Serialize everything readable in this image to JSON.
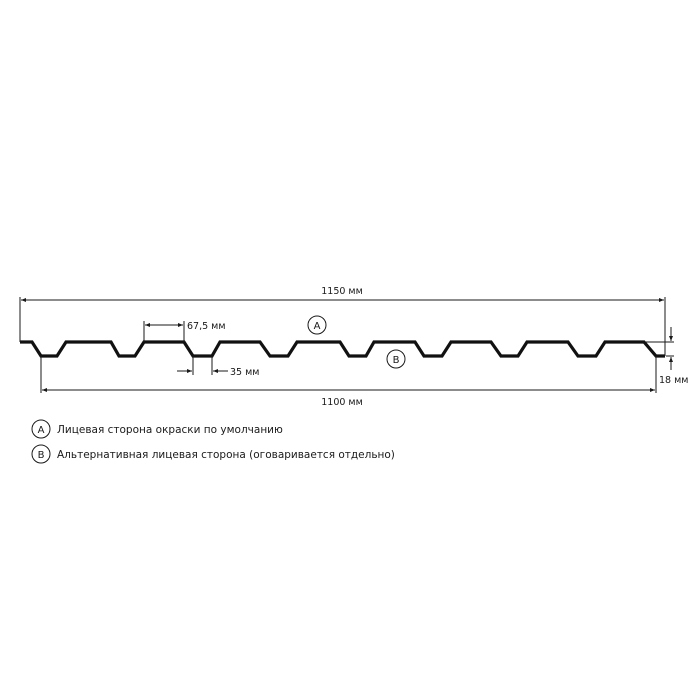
{
  "dimensions": {
    "overall_width": "1150 мм",
    "working_width": "1100 мм",
    "top_flange": "67,5 мм",
    "bottom_flange": "35 мм",
    "height": "18 мм"
  },
  "markers": {
    "a": "A",
    "b": "B"
  },
  "legend": [
    {
      "marker": "A",
      "text": "Лицевая сторона окраски по умолчанию"
    },
    {
      "marker": "B",
      "text": "Альтернативная лицевая сторона (оговаривается отдельно)"
    }
  ]
}
